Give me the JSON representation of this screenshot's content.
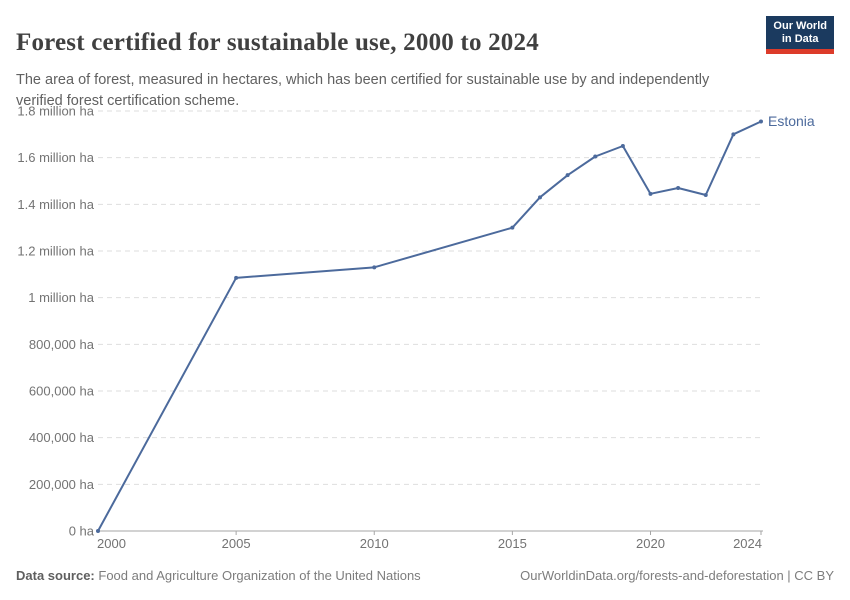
{
  "header": {
    "title": "Forest certified for sustainable use, 2000 to 2024",
    "subtitle": "The area of forest, measured in hectares, which has been certified for sustainable use by and independently verified forest certification scheme.",
    "logo": {
      "line1": "Our World",
      "line2": "in Data"
    }
  },
  "colors": {
    "series_blue": "#4C6A9C",
    "logo_navy": "#1b3a5f",
    "logo_red": "#dc3b2a",
    "grid_gray": "#dedede",
    "axis_gray": "#a6a6a6",
    "tick_text_gray": "#737373"
  },
  "chart_data": {
    "type": "line",
    "title": "Forest certified for sustainable use, 2000 to 2024",
    "xlabel": "",
    "ylabel": "",
    "xlim": [
      2000,
      2024
    ],
    "ylim": [
      0,
      1800000
    ],
    "grid": "horizontal-dashed",
    "legend_position": "end-of-line-label",
    "x_ticks": [
      {
        "year": 2000,
        "label": "2000",
        "anchor": "start"
      },
      {
        "year": 2005,
        "label": "2005",
        "anchor": "middle"
      },
      {
        "year": 2010,
        "label": "2010",
        "anchor": "middle"
      },
      {
        "year": 2015,
        "label": "2015",
        "anchor": "middle"
      },
      {
        "year": 2020,
        "label": "2020",
        "anchor": "middle"
      },
      {
        "year": 2024,
        "label": "2024",
        "anchor": "end"
      }
    ],
    "y_ticks": [
      {
        "value": 0,
        "label": "0 ha"
      },
      {
        "value": 200000,
        "label": "200,000 ha"
      },
      {
        "value": 400000,
        "label": "400,000 ha"
      },
      {
        "value": 600000,
        "label": "600,000 ha"
      },
      {
        "value": 800000,
        "label": "800,000 ha"
      },
      {
        "value": 1000000,
        "label": "1 million ha"
      },
      {
        "value": 1200000,
        "label": "1.2 million ha"
      },
      {
        "value": 1400000,
        "label": "1.4 million ha"
      },
      {
        "value": 1600000,
        "label": "1.6 million ha"
      },
      {
        "value": 1800000,
        "label": "1.8 million ha"
      }
    ],
    "series": [
      {
        "name": "Estonia",
        "color": "#4C6A9C",
        "points": [
          [
            2000,
            0
          ],
          [
            2005,
            1085000
          ],
          [
            2010,
            1130000
          ],
          [
            2015,
            1300000
          ],
          [
            2016,
            1430000
          ],
          [
            2017,
            1525000
          ],
          [
            2018,
            1605000
          ],
          [
            2019,
            1650000
          ],
          [
            2020,
            1445000
          ],
          [
            2021,
            1470000
          ],
          [
            2022,
            1440000
          ],
          [
            2023,
            1700000
          ],
          [
            2024,
            1755000
          ]
        ]
      }
    ]
  },
  "footer": {
    "left_label": "Data source:",
    "left_text": "Food and Agriculture Organization of the United Nations",
    "right_text": "OurWorldinData.org/forests-and-deforestation | CC BY"
  }
}
